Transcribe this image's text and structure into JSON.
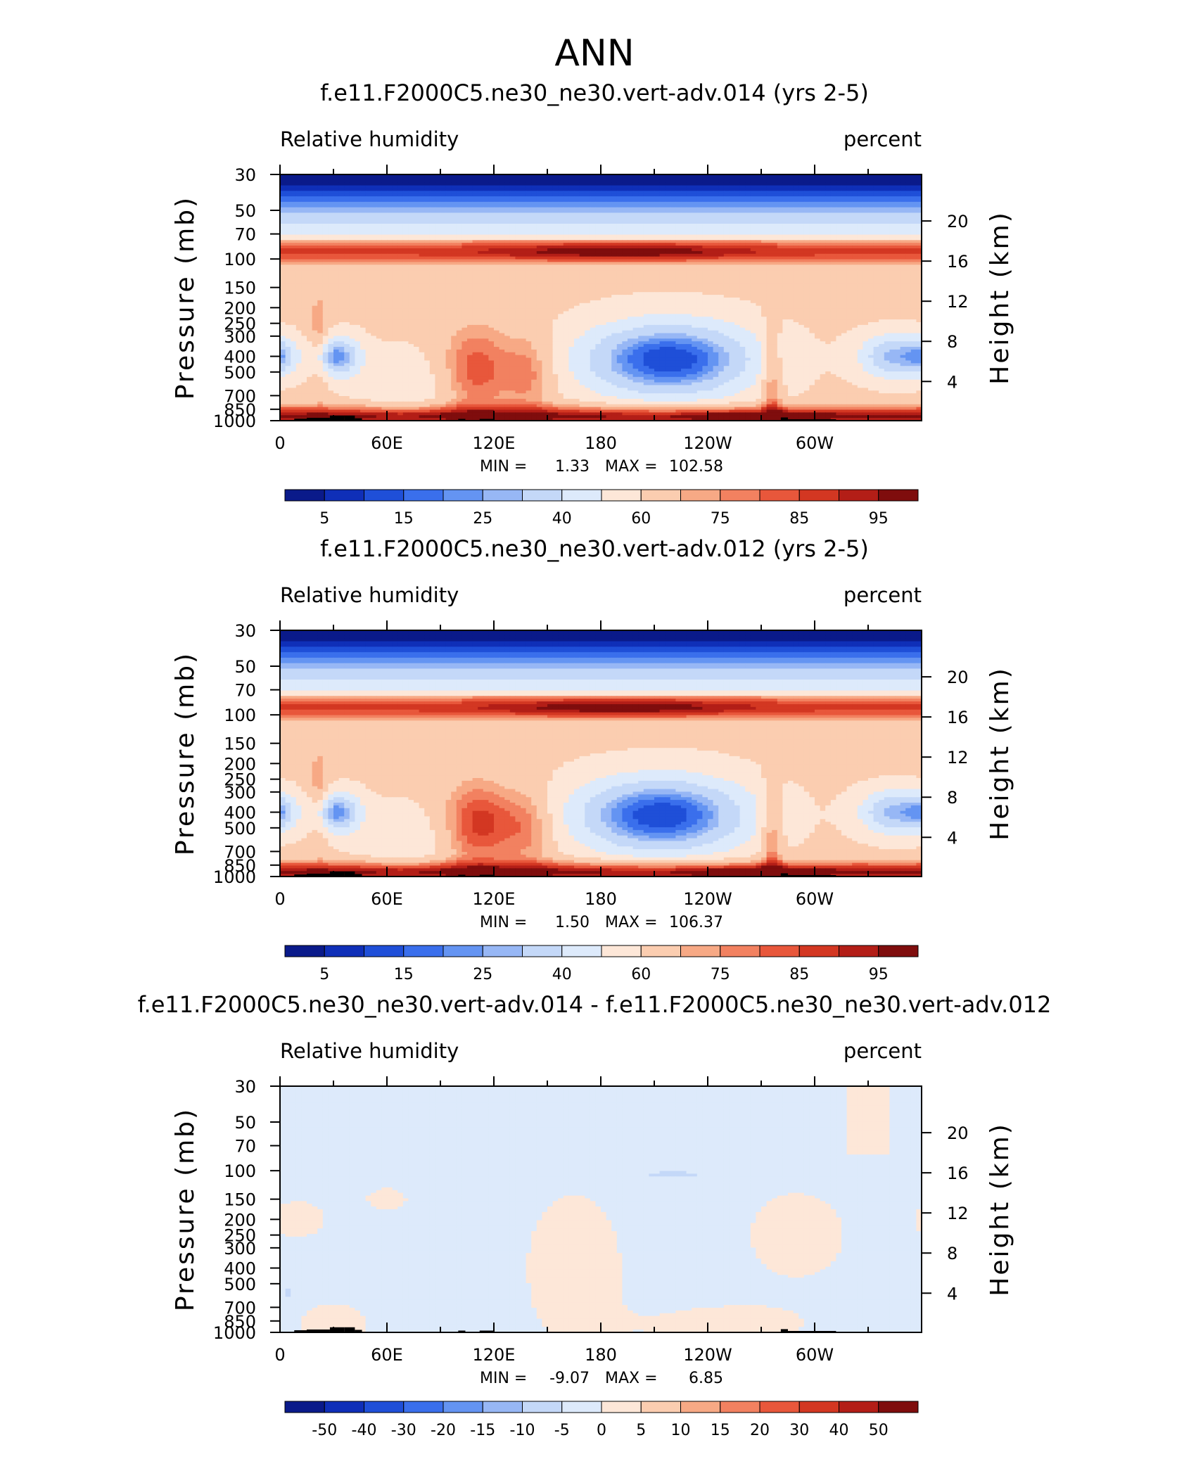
{
  "figure": {
    "title": "ANN"
  },
  "colors": {
    "sequential": [
      "#0a1a8a",
      "#0f2fb8",
      "#1f4fd8",
      "#3a6fec",
      "#6494f2",
      "#97b7f5",
      "#c4d8f8",
      "#ddeafb",
      "#fde7d8",
      "#fbcdb0",
      "#f7a985",
      "#f28160",
      "#e8573b",
      "#d33722",
      "#b31e17",
      "#7f0d0d"
    ],
    "diverging": [
      "#0a1a8a",
      "#0f2fb8",
      "#1f4fd8",
      "#3a6fec",
      "#6494f2",
      "#97b7f5",
      "#c4d8f8",
      "#ddeafb",
      "#fde7d8",
      "#fbcdb0",
      "#f7a985",
      "#f28160",
      "#e8573b",
      "#d33722",
      "#b31e17",
      "#7f0d0d"
    ],
    "land_mask": "#000000"
  },
  "chart_data": [
    {
      "type": "heatmap",
      "title": "f.e11.F2000C5.ne30_ne30.vert-adv.014 (yrs 2-5)",
      "variable": "Relative humidity",
      "units": "percent",
      "ylabel": "Pressure (mb)",
      "ylabel_right": "Height (km)",
      "x_ticks": [
        "0",
        "60E",
        "120E",
        "180",
        "120W",
        "60W"
      ],
      "y_ticks": [
        "30",
        "50",
        "70",
        "100",
        "150",
        "200",
        "250",
        "300",
        "400",
        "500",
        "700",
        "850",
        "1000"
      ],
      "y_ticks_right": [
        "20",
        "16",
        "12",
        "8",
        "4"
      ],
      "y_scale": "log (pressure, reversed)",
      "ylim": [
        1000,
        30
      ],
      "stats": {
        "min_label": "MIN =",
        "min": "1.33",
        "max_label": "MAX =",
        "max": "102.58"
      },
      "colorbar_labels": [
        "5",
        "15",
        "25",
        "40",
        "60",
        "75",
        "85",
        "95"
      ],
      "colorbar_scheme": "sequential",
      "pattern": "control"
    },
    {
      "type": "heatmap",
      "title": "f.e11.F2000C5.ne30_ne30.vert-adv.012 (yrs 2-5)",
      "variable": "Relative humidity",
      "units": "percent",
      "ylabel": "Pressure (mb)",
      "ylabel_right": "Height (km)",
      "x_ticks": [
        "0",
        "60E",
        "120E",
        "180",
        "120W",
        "60W"
      ],
      "y_ticks": [
        "30",
        "50",
        "70",
        "100",
        "150",
        "200",
        "250",
        "300",
        "400",
        "500",
        "700",
        "850",
        "1000"
      ],
      "y_ticks_right": [
        "20",
        "16",
        "12",
        "8",
        "4"
      ],
      "y_scale": "log (pressure, reversed)",
      "ylim": [
        1000,
        30
      ],
      "stats": {
        "min_label": "MIN =",
        "min": "1.50",
        "max_label": "MAX =",
        "max": "106.37"
      },
      "colorbar_labels": [
        "5",
        "15",
        "25",
        "40",
        "60",
        "75",
        "85",
        "95"
      ],
      "colorbar_scheme": "sequential",
      "pattern": "test"
    },
    {
      "type": "heatmap",
      "title": "f.e11.F2000C5.ne30_ne30.vert-adv.014 - f.e11.F2000C5.ne30_ne30.vert-adv.012",
      "variable": "Relative humidity",
      "units": "percent",
      "ylabel": "Pressure (mb)",
      "ylabel_right": "Height (km)",
      "x_ticks": [
        "0",
        "60E",
        "120E",
        "180",
        "120W",
        "60W"
      ],
      "y_ticks": [
        "30",
        "50",
        "70",
        "100",
        "150",
        "200",
        "250",
        "300",
        "400",
        "500",
        "700",
        "850",
        "1000"
      ],
      "y_ticks_right": [
        "20",
        "16",
        "12",
        "8",
        "4"
      ],
      "y_scale": "log (pressure, reversed)",
      "ylim": [
        1000,
        30
      ],
      "stats": {
        "min_label": "MIN =",
        "min": "-9.07",
        "max_label": "MAX =",
        "max": "6.85"
      },
      "colorbar_labels": [
        "-50",
        "-40",
        "-30",
        "-20",
        "-15",
        "-10",
        "-5",
        "0",
        "5",
        "10",
        "15",
        "20",
        "30",
        "40",
        "50"
      ],
      "colorbar_scheme": "diverging",
      "pattern": "difference"
    }
  ]
}
